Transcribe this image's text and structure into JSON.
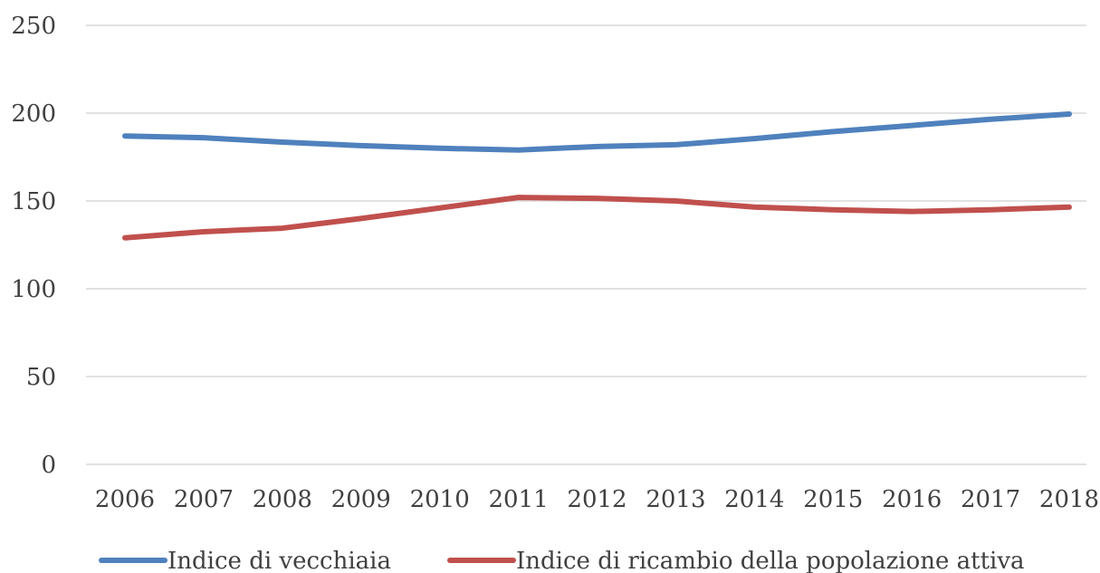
{
  "chart_data": {
    "type": "line",
    "title": "",
    "xlabel": "",
    "ylabel": "",
    "ylim": [
      0,
      250
    ],
    "yticks": [
      "0",
      "50",
      "100",
      "150",
      "200",
      "250"
    ],
    "categories": [
      "2006",
      "2007",
      "2008",
      "2009",
      "2010",
      "2011",
      "2012",
      "2013",
      "2014",
      "2015",
      "2016",
      "2017",
      "2018"
    ],
    "grid": "horizontal",
    "legend": "bottom",
    "series": [
      {
        "name": "Indice di vecchiaia",
        "color": "#4f81bd",
        "values": [
          187,
          186,
          183.5,
          181.5,
          180,
          179,
          181,
          182,
          185.5,
          189.5,
          193,
          196.5,
          199.5
        ]
      },
      {
        "name": "Indice di ricambio della popolazione attiva",
        "color": "#c0504d",
        "values": [
          129,
          132.5,
          134.5,
          140,
          146,
          152,
          151.5,
          150,
          146.5,
          145,
          144,
          145,
          146.5
        ]
      }
    ]
  }
}
